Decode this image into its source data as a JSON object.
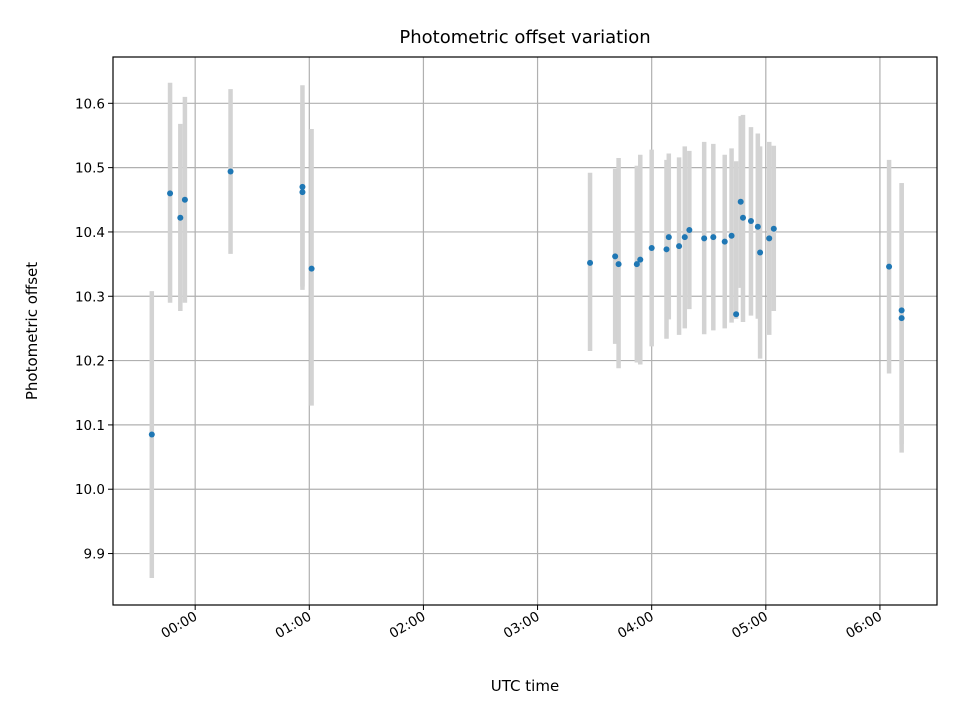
{
  "chart_data": {
    "type": "scatter",
    "title": "Photometric offset variation",
    "xlabel": "UTC time",
    "ylabel": "Photometric offset",
    "x_unit": "hours (UTC)",
    "xlim": [
      -0.72,
      6.5
    ],
    "ylim": [
      9.82,
      10.672
    ],
    "x_ticks": [
      {
        "value": 0,
        "label": "00:00"
      },
      {
        "value": 1,
        "label": "01:00"
      },
      {
        "value": 2,
        "label": "02:00"
      },
      {
        "value": 3,
        "label": "03:00"
      },
      {
        "value": 4,
        "label": "04:00"
      },
      {
        "value": 5,
        "label": "05:00"
      },
      {
        "value": 6,
        "label": "06:00"
      }
    ],
    "y_ticks": [
      {
        "value": 9.9,
        "label": "9.9"
      },
      {
        "value": 10.0,
        "label": "10.0"
      },
      {
        "value": 10.1,
        "label": "10.1"
      },
      {
        "value": 10.2,
        "label": "10.2"
      },
      {
        "value": 10.3,
        "label": "10.3"
      },
      {
        "value": 10.4,
        "label": "10.4"
      },
      {
        "value": 10.5,
        "label": "10.5"
      },
      {
        "value": 10.6,
        "label": "10.6"
      }
    ],
    "grid": true,
    "marker_color": "#1f77b4",
    "errorbar_color": "#d3d3d3",
    "points": [
      {
        "x": -0.38,
        "y": 10.085,
        "ylo": 9.862,
        "yhi": 10.308
      },
      {
        "x": -0.22,
        "y": 10.46,
        "ylo": 10.29,
        "yhi": 10.632
      },
      {
        "x": -0.13,
        "y": 10.422,
        "ylo": 10.277,
        "yhi": 10.568
      },
      {
        "x": -0.09,
        "y": 10.45,
        "ylo": 10.29,
        "yhi": 10.61
      },
      {
        "x": 0.31,
        "y": 10.494,
        "ylo": 10.366,
        "yhi": 10.622
      },
      {
        "x": 0.94,
        "y": 10.462,
        "ylo": 10.315,
        "yhi": 10.6
      },
      {
        "x": 0.94,
        "y": 10.47,
        "ylo": 10.31,
        "yhi": 10.628
      },
      {
        "x": 1.02,
        "y": 10.343,
        "ylo": 10.13,
        "yhi": 10.56
      },
      {
        "x": 3.46,
        "y": 10.352,
        "ylo": 10.215,
        "yhi": 10.492
      },
      {
        "x": 3.68,
        "y": 10.362,
        "ylo": 10.226,
        "yhi": 10.498
      },
      {
        "x": 3.71,
        "y": 10.35,
        "ylo": 10.188,
        "yhi": 10.515
      },
      {
        "x": 3.87,
        "y": 10.35,
        "ylo": 10.197,
        "yhi": 10.503
      },
      {
        "x": 3.9,
        "y": 10.357,
        "ylo": 10.194,
        "yhi": 10.52
      },
      {
        "x": 4.0,
        "y": 10.375,
        "ylo": 10.222,
        "yhi": 10.528
      },
      {
        "x": 4.13,
        "y": 10.373,
        "ylo": 10.234,
        "yhi": 10.512
      },
      {
        "x": 4.15,
        "y": 10.392,
        "ylo": 10.264,
        "yhi": 10.522
      },
      {
        "x": 4.24,
        "y": 10.378,
        "ylo": 10.24,
        "yhi": 10.516
      },
      {
        "x": 4.29,
        "y": 10.392,
        "ylo": 10.25,
        "yhi": 10.533
      },
      {
        "x": 4.33,
        "y": 10.403,
        "ylo": 10.28,
        "yhi": 10.526
      },
      {
        "x": 4.46,
        "y": 10.39,
        "ylo": 10.241,
        "yhi": 10.54
      },
      {
        "x": 4.54,
        "y": 10.392,
        "ylo": 10.247,
        "yhi": 10.537
      },
      {
        "x": 4.64,
        "y": 10.385,
        "ylo": 10.25,
        "yhi": 10.52
      },
      {
        "x": 4.7,
        "y": 10.394,
        "ylo": 10.259,
        "yhi": 10.53
      },
      {
        "x": 4.74,
        "y": 10.272,
        "ylo": 10.265,
        "yhi": 10.51
      },
      {
        "x": 4.78,
        "y": 10.447,
        "ylo": 10.313,
        "yhi": 10.58
      },
      {
        "x": 4.8,
        "y": 10.422,
        "ylo": 10.26,
        "yhi": 10.582
      },
      {
        "x": 4.87,
        "y": 10.417,
        "ylo": 10.27,
        "yhi": 10.563
      },
      {
        "x": 4.93,
        "y": 10.408,
        "ylo": 10.265,
        "yhi": 10.553
      },
      {
        "x": 4.95,
        "y": 10.368,
        "ylo": 10.203,
        "yhi": 10.533
      },
      {
        "x": 5.03,
        "y": 10.39,
        "ylo": 10.24,
        "yhi": 10.54
      },
      {
        "x": 5.07,
        "y": 10.405,
        "ylo": 10.277,
        "yhi": 10.534
      },
      {
        "x": 6.08,
        "y": 10.346,
        "ylo": 10.18,
        "yhi": 10.512
      },
      {
        "x": 6.19,
        "y": 10.266,
        "ylo": 10.057,
        "yhi": 10.476
      },
      {
        "x": 6.19,
        "y": 10.278,
        "ylo": 10.07,
        "yhi": 10.476
      }
    ]
  }
}
